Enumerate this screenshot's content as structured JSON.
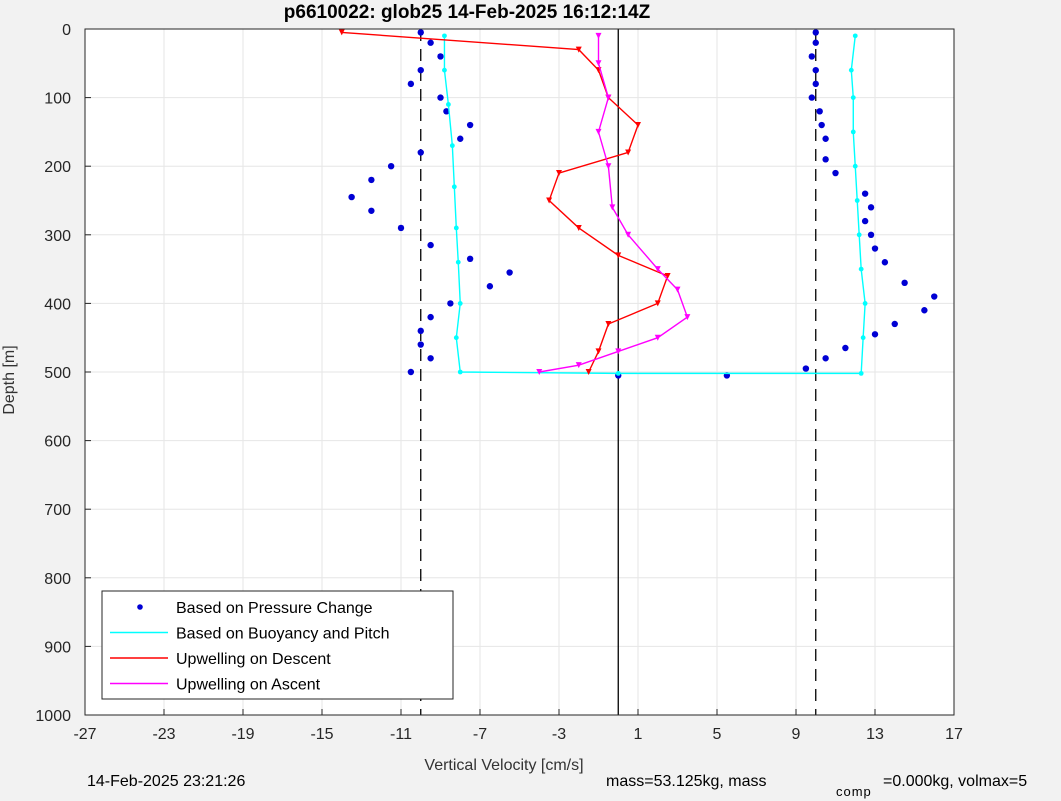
{
  "footer": {
    "left_timestamp": "14-Feb-2025 23:21:26",
    "mass_text": "mass=53.125kg, mass",
    "comp_subscript": "comp",
    "comp_text": "=0.000kg, volmax=5"
  },
  "chart_data": {
    "type": "scatter",
    "title": "p6610022: glob25 14-Feb-2025 16:12:14Z",
    "xlabel": "Vertical Velocity [cm/s]",
    "ylabel": "Depth [m]",
    "xlim": [
      -27,
      17
    ],
    "ylim": [
      0,
      1000
    ],
    "y_reversed": true,
    "grid": true,
    "x_ticks": [
      -27,
      -23,
      -19,
      -15,
      -11,
      -7,
      -3,
      1,
      5,
      9,
      13,
      17
    ],
    "y_ticks": [
      0,
      100,
      200,
      300,
      400,
      500,
      600,
      700,
      800,
      900,
      1000
    ],
    "legend_position": "bottom-left",
    "colors": {
      "pressure": "#0000d4",
      "buoyancy": "#00ffff",
      "descent": "#ff0000",
      "ascent": "#ff00ff",
      "grid": "#e6e6e6"
    },
    "series": [
      {
        "name": "Based on Pressure Change",
        "style": "dots",
        "color": "#0000d4",
        "points": [
          [
            -10,
            5
          ],
          [
            -9.5,
            20
          ],
          [
            -9,
            40
          ],
          [
            -10,
            60
          ],
          [
            -10.5,
            80
          ],
          [
            -9,
            100
          ],
          [
            -8.7,
            120
          ],
          [
            -7.5,
            140
          ],
          [
            -8,
            160
          ],
          [
            -10,
            180
          ],
          [
            -11.5,
            200
          ],
          [
            -12.5,
            220
          ],
          [
            -13.5,
            245
          ],
          [
            -12.5,
            265
          ],
          [
            -11,
            290
          ],
          [
            -9.5,
            315
          ],
          [
            -7.5,
            335
          ],
          [
            -5.5,
            355
          ],
          [
            -6.5,
            375
          ],
          [
            -8.5,
            400
          ],
          [
            -9.5,
            420
          ],
          [
            -10,
            440
          ],
          [
            -10,
            460
          ],
          [
            -9.5,
            480
          ],
          [
            -10.5,
            500
          ],
          [
            10,
            5
          ],
          [
            10,
            20
          ],
          [
            9.8,
            40
          ],
          [
            10,
            60
          ],
          [
            10,
            80
          ],
          [
            9.8,
            100
          ],
          [
            10.2,
            120
          ],
          [
            10.3,
            140
          ],
          [
            10.5,
            160
          ],
          [
            10.5,
            190
          ],
          [
            11,
            210
          ],
          [
            12.5,
            240
          ],
          [
            12.8,
            260
          ],
          [
            12.5,
            280
          ],
          [
            12.8,
            300
          ],
          [
            13,
            320
          ],
          [
            13.5,
            340
          ],
          [
            14.5,
            370
          ],
          [
            16,
            390
          ],
          [
            15.5,
            410
          ],
          [
            14,
            430
          ],
          [
            13,
            445
          ],
          [
            11.5,
            465
          ],
          [
            10.5,
            480
          ],
          [
            9.5,
            495
          ],
          [
            0,
            505
          ],
          [
            5.5,
            505
          ]
        ]
      },
      {
        "name": "Based on Buoyancy and Pitch",
        "style": "line",
        "color": "#00ffff",
        "points": [
          [
            -8.8,
            10
          ],
          [
            -8.8,
            60
          ],
          [
            -8.6,
            110
          ],
          [
            -8.4,
            170
          ],
          [
            -8.3,
            230
          ],
          [
            -8.2,
            290
          ],
          [
            -8.1,
            340
          ],
          [
            -8.0,
            400
          ],
          [
            -8.2,
            450
          ],
          [
            -8.0,
            500
          ],
          [
            0,
            502
          ],
          [
            12.3,
            502
          ],
          [
            12.4,
            450
          ],
          [
            12.5,
            400
          ],
          [
            12.3,
            350
          ],
          [
            12.2,
            300
          ],
          [
            12.1,
            250
          ],
          [
            12.0,
            200
          ],
          [
            11.9,
            150
          ],
          [
            11.9,
            100
          ],
          [
            11.8,
            60
          ],
          [
            12.0,
            10
          ]
        ]
      },
      {
        "name": "Upwelling on Descent",
        "style": "line-tri",
        "color": "#ff0000",
        "points": [
          [
            -14,
            5
          ],
          [
            -2,
            30
          ],
          [
            -1,
            60
          ],
          [
            -0.5,
            100
          ],
          [
            1,
            140
          ],
          [
            0.5,
            180
          ],
          [
            -3,
            210
          ],
          [
            -3.5,
            250
          ],
          [
            -2,
            290
          ],
          [
            0,
            330
          ],
          [
            2.5,
            360
          ],
          [
            2,
            400
          ],
          [
            -0.5,
            430
          ],
          [
            -1,
            470
          ],
          [
            -1.5,
            500
          ]
        ]
      },
      {
        "name": "Upwelling on Ascent",
        "style": "line-tri",
        "color": "#ff00ff",
        "points": [
          [
            -1,
            10
          ],
          [
            -1,
            50
          ],
          [
            -0.5,
            100
          ],
          [
            -1,
            150
          ],
          [
            -0.5,
            200
          ],
          [
            -0.3,
            260
          ],
          [
            0.5,
            300
          ],
          [
            2,
            350
          ],
          [
            3,
            380
          ],
          [
            3.5,
            420
          ],
          [
            2,
            450
          ],
          [
            0,
            470
          ],
          [
            -2,
            490
          ],
          [
            -4,
            500
          ]
        ]
      }
    ],
    "reference_lines": [
      {
        "x": -10,
        "style": "dashed"
      },
      {
        "x": 0,
        "style": "solid"
      },
      {
        "x": 10,
        "style": "dashed"
      }
    ]
  }
}
